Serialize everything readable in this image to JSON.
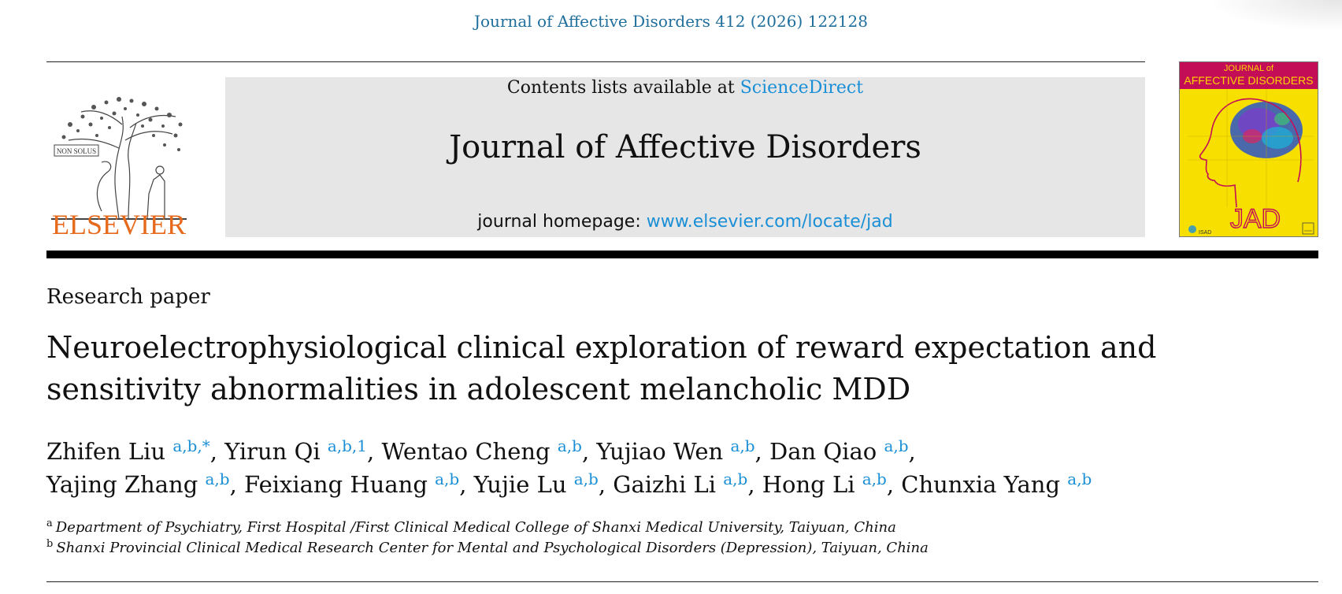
{
  "citation": "Journal of Affective Disorders 412 (2026) 122128",
  "publisher": {
    "name": "ELSEVIER",
    "tree_motto": "NON SOLUS"
  },
  "masthead": {
    "contents_prefix": "Contents lists available at ",
    "contents_link": "ScienceDirect",
    "journal_title": "Journal of Affective Disorders",
    "homepage_prefix": "journal homepage: ",
    "homepage_link": "www.elsevier.com/locate/jad"
  },
  "cover": {
    "title_line1": "JOURNAL of",
    "title_line2": "AFFECTIVE DISORDERS",
    "monogram": "JAD",
    "society": "ISAD",
    "colors": {
      "background": "#f7e000",
      "band": "#c40d57",
      "monogram": "#c40d57"
    }
  },
  "article": {
    "type": "Research paper",
    "title_line1": "Neuroelectrophysiological clinical exploration of reward expectation and",
    "title_line2": "sensitivity abnormalities in adolescent melancholic MDD"
  },
  "authors": [
    {
      "name": "Zhifen Liu",
      "sup": "a,b,*",
      "sep": ", "
    },
    {
      "name": "Yirun Qi",
      "sup": "a,b,1",
      "sep": ", "
    },
    {
      "name": "Wentao Cheng",
      "sup": "a,b",
      "sep": ", "
    },
    {
      "name": "Yujiao Wen",
      "sup": "a,b",
      "sep": ", "
    },
    {
      "name": "Dan Qiao",
      "sup": "a,b",
      "sep": ","
    },
    {
      "name": "Yajing Zhang",
      "sup": "a,b",
      "sep": ", "
    },
    {
      "name": "Feixiang Huang",
      "sup": "a,b",
      "sep": ", "
    },
    {
      "name": "Yujie Lu",
      "sup": "a,b",
      "sep": ", "
    },
    {
      "name": "Gaizhi Li",
      "sup": "a,b",
      "sep": ", "
    },
    {
      "name": "Hong Li",
      "sup": "a,b",
      "sep": ", "
    },
    {
      "name": "Chunxia Yang",
      "sup": "a,b",
      "sep": ""
    }
  ],
  "affiliations": [
    {
      "label": "a",
      "text": "Department of Psychiatry, First Hospital /First Clinical Medical College of Shanxi Medical University, Taiyuan, China"
    },
    {
      "label": "b",
      "text": "Shanxi Provincial Clinical Medical Research Center for Mental and Psychological Disorders (Depression), Taiyuan, China"
    }
  ],
  "colors": {
    "link": "#1a8fd6",
    "citation": "#1f6e9c",
    "elsevier_orange": "#e66a1c",
    "masthead_grey": "#e6e6e6"
  }
}
